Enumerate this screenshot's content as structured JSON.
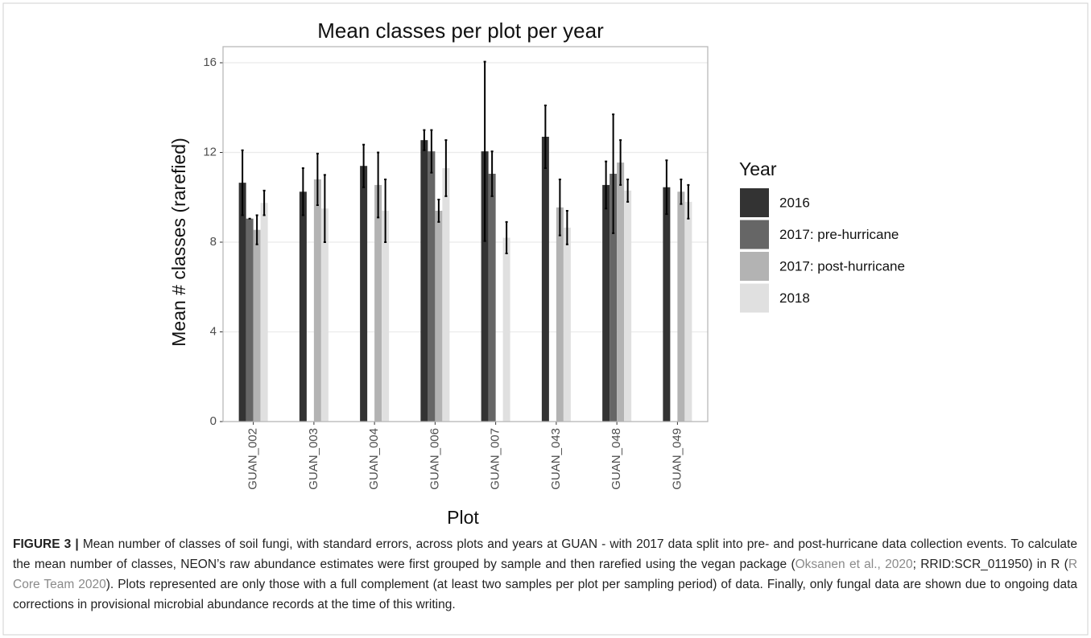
{
  "chart_data": {
    "type": "bar",
    "title": "Mean classes per plot per year",
    "x_label": "Plot",
    "y_label": "Mean # classes (rarefied)",
    "categories": [
      "GUAN_002",
      "GUAN_003",
      "GUAN_004",
      "GUAN_006",
      "GUAN_007",
      "GUAN_043",
      "GUAN_048",
      "GUAN_049"
    ],
    "legend_title": "Year",
    "legend_position": "right",
    "grid": true,
    "ylim": [
      0,
      16
    ],
    "yticks": [
      0,
      4,
      8,
      12,
      16
    ],
    "series": [
      {
        "name": "2016",
        "color": "#333333",
        "values": [
          10.65,
          10.25,
          11.4,
          12.55,
          12.05,
          12.7,
          10.55,
          10.45
        ],
        "errors": [
          1.45,
          1.05,
          0.95,
          0.45,
          4.0,
          1.4,
          1.05,
          1.2
        ]
      },
      {
        "name": "2017: pre-hurricane",
        "color": "#666666",
        "values": [
          9.05,
          null,
          null,
          12.05,
          11.05,
          null,
          11.05,
          null
        ],
        "errors": [
          0,
          null,
          null,
          0.95,
          1.0,
          null,
          2.65,
          null
        ]
      },
      {
        "name": "2017: post-hurricane",
        "color": "#b3b3b3",
        "values": [
          8.55,
          10.8,
          10.55,
          9.4,
          null,
          9.55,
          11.55,
          10.25
        ],
        "errors": [
          0.65,
          1.15,
          1.45,
          0.5,
          null,
          1.25,
          1.0,
          0.55
        ]
      },
      {
        "name": "2018",
        "color": "#e0e0e0",
        "values": [
          9.75,
          9.5,
          9.4,
          11.3,
          8.2,
          8.65,
          10.3,
          9.8
        ],
        "errors": [
          0.55,
          1.5,
          1.4,
          1.25,
          0.7,
          0.75,
          0.5,
          0.75
        ]
      }
    ]
  },
  "caption": {
    "parts": [
      "FIGURE 3 |",
      " Mean number of classes of soil fungi, with standard errors, across plots and years at GUAN - with 2017 data split into pre- and post-hurricane data collection events. To calculate the mean number of classes, NEON’s raw abundance estimates were first grouped by sample and then rarefied using the vegan package (",
      "Oksanen et al., 2020",
      "; RRID:SCR_011950) in R (",
      "R Core Team 2020",
      "). Plots represented are only those with a full complement (at least two samples per plot per sampling period) of data. Finally, only fungal data are shown due to ongoing data corrections in provisional microbial abundance records at the time of this writing."
    ]
  }
}
